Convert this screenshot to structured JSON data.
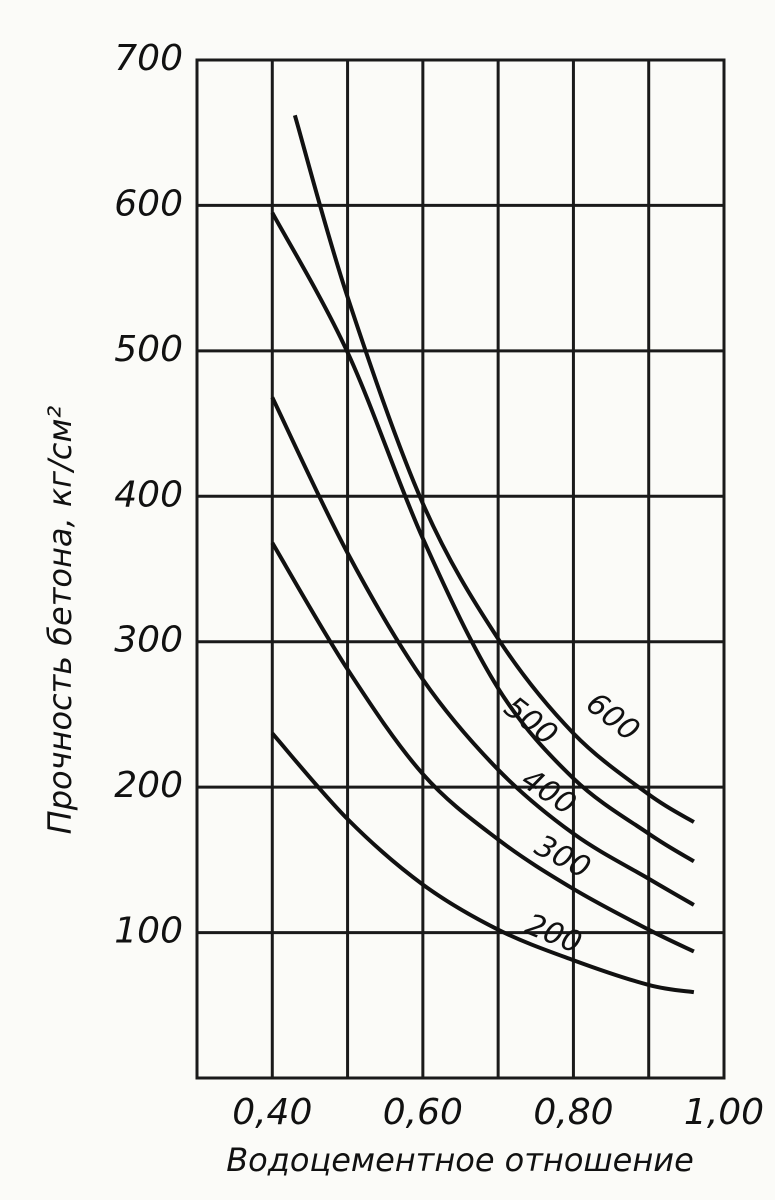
{
  "chart_data": {
    "type": "line",
    "y_label": "Прочность бетона, кг/см²",
    "x_label": "Водоцементное отношение",
    "xlim": [
      0.3,
      1.0
    ],
    "xticks": [
      {
        "value": 0.4,
        "label": "0,40"
      },
      {
        "value": 0.6,
        "label": "0,60"
      },
      {
        "value": 0.8,
        "label": "0,80"
      },
      {
        "value": 1.0,
        "label": "1,00"
      }
    ],
    "xgrid": [
      0.5,
      0.7,
      0.9
    ],
    "ylim": [
      0,
      700
    ],
    "yticks": [
      100,
      200,
      300,
      400,
      500,
      600,
      700
    ],
    "grid": true,
    "series": [
      {
        "name": "600",
        "color": "#111111",
        "x": [
          0.43,
          0.5,
          0.6,
          0.7,
          0.8,
          0.9,
          0.96
        ],
        "values": [
          662,
          537,
          395,
          302,
          237,
          195,
          176
        ]
      },
      {
        "name": "500",
        "color": "#111111",
        "x": [
          0.4,
          0.5,
          0.6,
          0.7,
          0.8,
          0.9,
          0.96
        ],
        "values": [
          595,
          499,
          371,
          268,
          206,
          168,
          149
        ]
      },
      {
        "name": "400",
        "color": "#111111",
        "x": [
          0.4,
          0.5,
          0.6,
          0.7,
          0.8,
          0.9,
          0.96
        ],
        "values": [
          468,
          361,
          274,
          212,
          168,
          137,
          119
        ]
      },
      {
        "name": "300",
        "color": "#111111",
        "x": [
          0.4,
          0.5,
          0.6,
          0.7,
          0.8,
          0.9,
          0.96
        ],
        "values": [
          368,
          281,
          209,
          164,
          130,
          102,
          87
        ]
      },
      {
        "name": "200",
        "color": "#111111",
        "x": [
          0.4,
          0.5,
          0.6,
          0.7,
          0.8,
          0.9,
          0.96
        ],
        "values": [
          237,
          178,
          133,
          102,
          81,
          64,
          59
        ]
      }
    ]
  }
}
